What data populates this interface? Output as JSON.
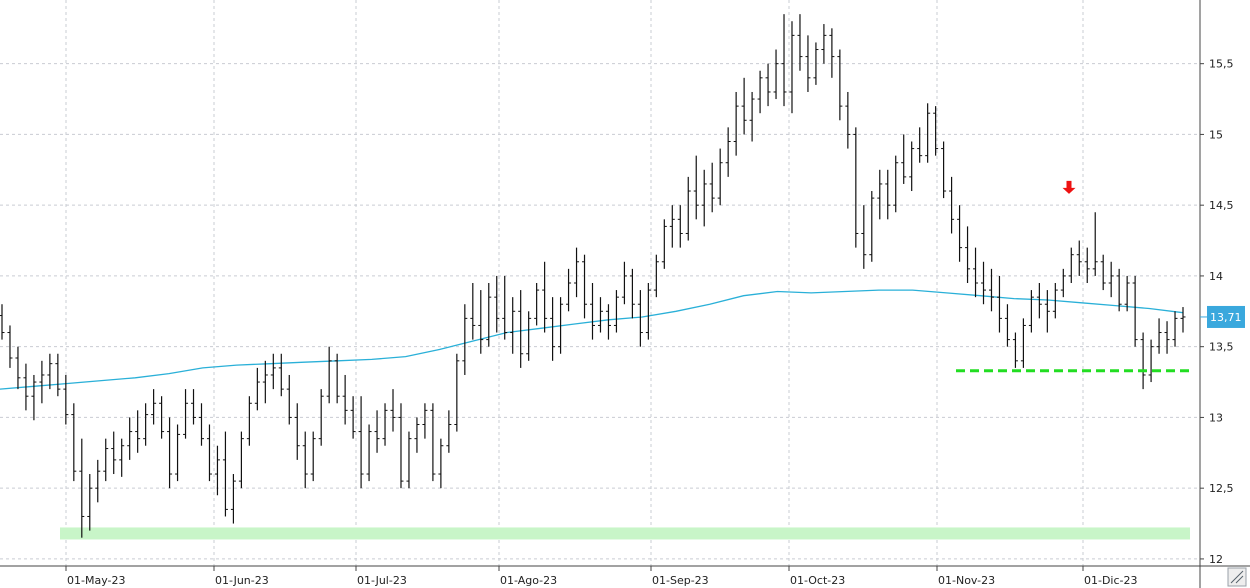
{
  "chart_data": {
    "type": "ohlc",
    "title": "",
    "xlabel": "",
    "ylabel": "",
    "ylim": [
      11.95,
      15.95
    ],
    "y_ticks": [
      "12",
      "12,5",
      "13",
      "13,5",
      "14",
      "14,5",
      "15",
      "15,5"
    ],
    "y_tick_values": [
      12,
      12.5,
      13,
      13.5,
      14,
      14.5,
      15,
      15.5
    ],
    "x_ticks": [
      "01-May-23",
      "01-Jun-23",
      "01-Jul-23",
      "01-Ago-23",
      "01-Sep-23",
      "01-Oct-23",
      "01-Nov-23",
      "01-Dic-23"
    ],
    "grid": true,
    "last_value_label": "13,71",
    "last_value": 13.71,
    "colors": {
      "bars": "#111111",
      "moving_average": "#2ab0d8",
      "support_dashed": "#22dd22",
      "support_band": "#c8f5c8",
      "arrow": "#ee1111",
      "label_bg": "#3aa8dd"
    },
    "support_levels": [
      {
        "value": 13.33,
        "style": "dashed",
        "from_month": "01-Nov-23",
        "to_month": "end"
      },
      {
        "value": 12.18,
        "style": "band",
        "from_month": "start",
        "to_month": "end"
      }
    ],
    "arrow_marker": {
      "at_month": "01-Dic-23",
      "offset_days": -4,
      "above_price": 14.45
    },
    "moving_average": [
      13.2,
      13.22,
      13.24,
      13.26,
      13.28,
      13.31,
      13.35,
      13.37,
      13.38,
      13.39,
      13.4,
      13.41,
      13.43,
      13.48,
      13.54,
      13.6,
      13.63,
      13.66,
      13.69,
      13.71,
      13.75,
      13.8,
      13.86,
      13.89,
      13.88,
      13.89,
      13.9,
      13.9,
      13.88,
      13.86,
      13.84,
      13.83,
      13.81,
      13.79,
      13.77,
      13.74
    ],
    "ohlc": [
      [
        13.72,
        13.8,
        13.55,
        13.6
      ],
      [
        13.6,
        13.65,
        13.35,
        13.42
      ],
      [
        13.42,
        13.5,
        13.2,
        13.28
      ],
      [
        13.28,
        13.38,
        13.05,
        13.15
      ],
      [
        13.15,
        13.3,
        12.98,
        13.25
      ],
      [
        13.25,
        13.4,
        13.1,
        13.3
      ],
      [
        13.3,
        13.45,
        13.2,
        13.38
      ],
      [
        13.38,
        13.45,
        13.15,
        13.2
      ],
      [
        13.2,
        13.3,
        12.95,
        13.02
      ],
      [
        13.02,
        13.1,
        12.55,
        12.62
      ],
      [
        12.62,
        12.85,
        12.15,
        12.3
      ],
      [
        12.3,
        12.6,
        12.2,
        12.5
      ],
      [
        12.5,
        12.7,
        12.4,
        12.62
      ],
      [
        12.62,
        12.85,
        12.55,
        12.78
      ],
      [
        12.78,
        12.9,
        12.6,
        12.7
      ],
      [
        12.7,
        12.85,
        12.58,
        12.8
      ],
      [
        12.8,
        13.0,
        12.7,
        12.9
      ],
      [
        12.9,
        13.05,
        12.75,
        12.85
      ],
      [
        12.85,
        13.1,
        12.8,
        13.02
      ],
      [
        13.02,
        13.2,
        12.95,
        13.1
      ],
      [
        13.1,
        13.15,
        12.85,
        12.9
      ],
      [
        12.9,
        13.0,
        12.5,
        12.6
      ],
      [
        12.6,
        12.95,
        12.55,
        12.88
      ],
      [
        12.88,
        13.2,
        12.85,
        13.1
      ],
      [
        13.1,
        13.2,
        12.95,
        13.0
      ],
      [
        13.0,
        13.1,
        12.8,
        12.85
      ],
      [
        12.85,
        12.95,
        12.55,
        12.6
      ],
      [
        12.6,
        12.8,
        12.45,
        12.7
      ],
      [
        12.7,
        12.9,
        12.3,
        12.35
      ],
      [
        12.35,
        12.6,
        12.25,
        12.55
      ],
      [
        12.55,
        12.9,
        12.5,
        12.85
      ],
      [
        12.85,
        13.15,
        12.8,
        13.1
      ],
      [
        13.1,
        13.35,
        13.05,
        13.25
      ],
      [
        13.25,
        13.4,
        13.1,
        13.3
      ],
      [
        13.3,
        13.45,
        13.2,
        13.35
      ],
      [
        13.35,
        13.45,
        13.15,
        13.2
      ],
      [
        13.2,
        13.3,
        12.95,
        13.0
      ],
      [
        13.0,
        13.1,
        12.7,
        12.8
      ],
      [
        12.8,
        12.9,
        12.5,
        12.6
      ],
      [
        12.6,
        12.9,
        12.55,
        12.85
      ],
      [
        12.85,
        13.2,
        12.8,
        13.15
      ],
      [
        13.15,
        13.5,
        13.1,
        13.4
      ],
      [
        13.4,
        13.45,
        13.1,
        13.15
      ],
      [
        13.15,
        13.3,
        12.95,
        13.05
      ],
      [
        13.05,
        13.15,
        12.85,
        12.9
      ],
      [
        12.9,
        13.15,
        12.5,
        12.6
      ],
      [
        12.6,
        12.95,
        12.55,
        12.9
      ],
      [
        12.9,
        13.05,
        12.75,
        12.85
      ],
      [
        12.85,
        13.1,
        12.8,
        13.05
      ],
      [
        13.05,
        13.2,
        12.9,
        13.0
      ],
      [
        13.0,
        13.1,
        12.5,
        12.55
      ],
      [
        12.55,
        12.9,
        12.5,
        12.85
      ],
      [
        12.85,
        13.0,
        12.75,
        12.95
      ],
      [
        12.95,
        13.1,
        12.85,
        13.05
      ],
      [
        13.05,
        13.1,
        12.55,
        12.6
      ],
      [
        12.6,
        12.85,
        12.5,
        12.8
      ],
      [
        12.8,
        13.05,
        12.75,
        12.95
      ],
      [
        12.95,
        13.45,
        12.9,
        13.4
      ],
      [
        13.4,
        13.8,
        13.3,
        13.7
      ],
      [
        13.7,
        13.95,
        13.55,
        13.65
      ],
      [
        13.65,
        13.9,
        13.45,
        13.55
      ],
      [
        13.55,
        13.95,
        13.5,
        13.85
      ],
      [
        13.85,
        14.0,
        13.6,
        13.7
      ],
      [
        13.7,
        14.0,
        13.55,
        13.6
      ],
      [
        13.6,
        13.85,
        13.45,
        13.75
      ],
      [
        13.75,
        13.9,
        13.35,
        13.45
      ],
      [
        13.45,
        13.75,
        13.4,
        13.7
      ],
      [
        13.7,
        13.95,
        13.65,
        13.9
      ],
      [
        13.9,
        14.1,
        13.6,
        13.7
      ],
      [
        13.7,
        13.85,
        13.4,
        13.5
      ],
      [
        13.5,
        13.85,
        13.45,
        13.8
      ],
      [
        13.8,
        14.05,
        13.75,
        13.95
      ],
      [
        13.95,
        14.2,
        13.85,
        14.1
      ],
      [
        14.1,
        14.15,
        13.7,
        13.8
      ],
      [
        13.8,
        13.95,
        13.55,
        13.65
      ],
      [
        13.65,
        13.85,
        13.6,
        13.75
      ],
      [
        13.75,
        13.8,
        13.55,
        13.65
      ],
      [
        13.65,
        13.9,
        13.6,
        13.85
      ],
      [
        13.85,
        14.1,
        13.8,
        14.0
      ],
      [
        14.0,
        14.05,
        13.7,
        13.8
      ],
      [
        13.8,
        13.9,
        13.5,
        13.6
      ],
      [
        13.6,
        13.95,
        13.55,
        13.9
      ],
      [
        13.9,
        14.15,
        13.85,
        14.1
      ],
      [
        14.1,
        14.4,
        14.05,
        14.35
      ],
      [
        14.35,
        14.5,
        14.2,
        14.4
      ],
      [
        14.4,
        14.5,
        14.2,
        14.3
      ],
      [
        14.3,
        14.7,
        14.25,
        14.6
      ],
      [
        14.6,
        14.85,
        14.4,
        14.5
      ],
      [
        14.5,
        14.75,
        14.35,
        14.65
      ],
      [
        14.65,
        14.8,
        14.45,
        14.55
      ],
      [
        14.55,
        14.9,
        14.5,
        14.8
      ],
      [
        14.8,
        15.05,
        14.7,
        14.95
      ],
      [
        14.95,
        15.3,
        14.85,
        15.2
      ],
      [
        15.2,
        15.4,
        15.0,
        15.1
      ],
      [
        15.1,
        15.3,
        14.95,
        15.25
      ],
      [
        15.25,
        15.45,
        15.15,
        15.4
      ],
      [
        15.4,
        15.5,
        15.2,
        15.3
      ],
      [
        15.3,
        15.6,
        15.25,
        15.5
      ],
      [
        15.5,
        15.85,
        15.2,
        15.3
      ],
      [
        15.3,
        15.8,
        15.15,
        15.7
      ],
      [
        15.7,
        15.85,
        15.45,
        15.55
      ],
      [
        15.55,
        15.7,
        15.3,
        15.4
      ],
      [
        15.4,
        15.65,
        15.35,
        15.6
      ],
      [
        15.6,
        15.78,
        15.5,
        15.7
      ],
      [
        15.7,
        15.75,
        15.4,
        15.55
      ],
      [
        15.55,
        15.6,
        15.1,
        15.2
      ],
      [
        15.2,
        15.3,
        14.9,
        15.0
      ],
      [
        15.0,
        15.05,
        14.2,
        14.3
      ],
      [
        14.3,
        14.5,
        14.05,
        14.15
      ],
      [
        14.15,
        14.6,
        14.1,
        14.55
      ],
      [
        14.55,
        14.75,
        14.4,
        14.65
      ],
      [
        14.65,
        14.75,
        14.4,
        14.5
      ],
      [
        14.5,
        14.85,
        14.45,
        14.8
      ],
      [
        14.8,
        15.0,
        14.65,
        14.7
      ],
      [
        14.7,
        14.95,
        14.6,
        14.9
      ],
      [
        14.9,
        15.05,
        14.8,
        14.85
      ],
      [
        14.85,
        15.22,
        14.8,
        15.15
      ],
      [
        15.15,
        15.2,
        14.85,
        14.9
      ],
      [
        14.9,
        14.95,
        14.55,
        14.6
      ],
      [
        14.6,
        14.7,
        14.3,
        14.4
      ],
      [
        14.4,
        14.5,
        14.1,
        14.2
      ],
      [
        14.2,
        14.35,
        13.95,
        14.05
      ],
      [
        14.05,
        14.2,
        13.85,
        13.95
      ],
      [
        13.95,
        14.1,
        13.8,
        13.9
      ],
      [
        13.9,
        14.05,
        13.75,
        13.85
      ],
      [
        13.85,
        14.0,
        13.6,
        13.7
      ],
      [
        13.7,
        13.8,
        13.5,
        13.55
      ],
      [
        13.55,
        13.6,
        13.35,
        13.4
      ],
      [
        13.4,
        13.7,
        13.35,
        13.65
      ],
      [
        13.65,
        13.9,
        13.6,
        13.85
      ],
      [
        13.85,
        13.95,
        13.7,
        13.8
      ],
      [
        13.8,
        13.9,
        13.6,
        13.75
      ],
      [
        13.75,
        13.95,
        13.7,
        13.9
      ],
      [
        13.9,
        14.05,
        13.85,
        14.0
      ],
      [
        14.0,
        14.2,
        13.95,
        14.15
      ],
      [
        14.15,
        14.25,
        14.0,
        14.1
      ],
      [
        14.1,
        14.2,
        13.95,
        14.05
      ],
      [
        14.05,
        14.45,
        14.0,
        14.1
      ],
      [
        14.1,
        14.15,
        13.9,
        13.95
      ],
      [
        13.95,
        14.1,
        13.85,
        14.0
      ],
      [
        14.0,
        14.05,
        13.75,
        13.8
      ],
      [
        13.8,
        14.0,
        13.75,
        13.95
      ],
      [
        13.95,
        14.0,
        13.5,
        13.55
      ],
      [
        13.55,
        13.6,
        13.2,
        13.3
      ],
      [
        13.3,
        13.55,
        13.25,
        13.5
      ],
      [
        13.5,
        13.7,
        13.45,
        13.6
      ],
      [
        13.6,
        13.68,
        13.45,
        13.55
      ],
      [
        13.55,
        13.75,
        13.5,
        13.7
      ],
      [
        13.7,
        13.78,
        13.6,
        13.71
      ]
    ]
  }
}
